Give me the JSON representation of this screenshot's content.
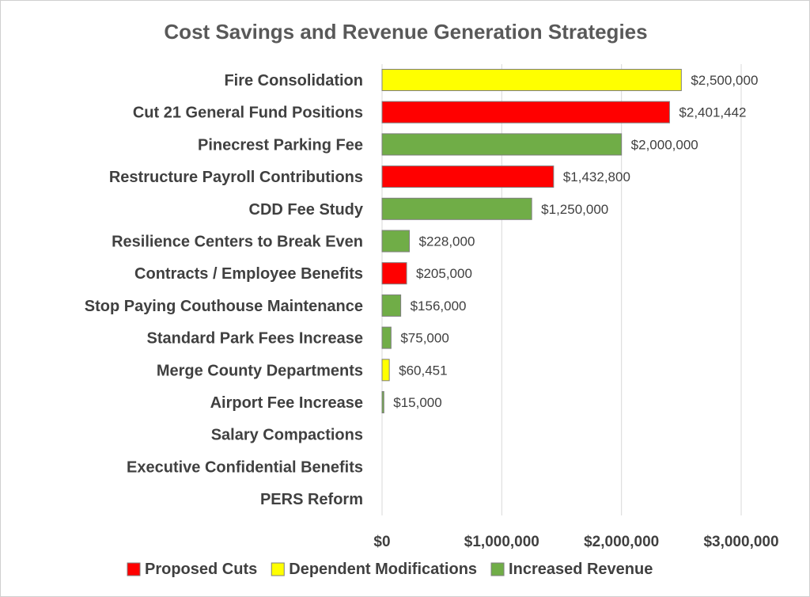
{
  "chart_data": {
    "type": "bar",
    "orientation": "horizontal",
    "title": "Cost Savings and Revenue Generation Strategies",
    "xlim": [
      0,
      3000000
    ],
    "x_ticks": [
      0,
      1000000,
      2000000,
      3000000
    ],
    "x_tick_labels": [
      "$0",
      "$1,000,000",
      "$2,000,000",
      "$3,000,000"
    ],
    "grid": true,
    "legend_position": "bottom",
    "legend": [
      {
        "name": "Proposed Cuts",
        "color": "#ff0000"
      },
      {
        "name": "Dependent Modifications",
        "color": "#ffff00"
      },
      {
        "name": "Increased Revenue",
        "color": "#70ad47"
      }
    ],
    "bars": [
      {
        "category": "Fire Consolidation",
        "value": 2500000,
        "label": "$2,500,000",
        "group": "Dependent Modifications",
        "color": "#ffff00"
      },
      {
        "category": "Cut 21 General Fund Positions",
        "value": 2401442,
        "label": "$2,401,442",
        "group": "Proposed Cuts",
        "color": "#ff0000"
      },
      {
        "category": "Pinecrest Parking Fee",
        "value": 2000000,
        "label": "$2,000,000",
        "group": "Increased Revenue",
        "color": "#70ad47"
      },
      {
        "category": "Restructure Payroll Contributions",
        "value": 1432800,
        "label": "$1,432,800",
        "group": "Proposed Cuts",
        "color": "#ff0000"
      },
      {
        "category": "CDD Fee Study",
        "value": 1250000,
        "label": "$1,250,000",
        "group": "Increased Revenue",
        "color": "#70ad47"
      },
      {
        "category": "Resilience Centers to Break Even",
        "value": 228000,
        "label": "$228,000",
        "group": "Increased Revenue",
        "color": "#70ad47"
      },
      {
        "category": "Contracts / Employee Benefits",
        "value": 205000,
        "label": "$205,000",
        "group": "Proposed Cuts",
        "color": "#ff0000"
      },
      {
        "category": "Stop Paying Couthouse Maintenance",
        "value": 156000,
        "label": "$156,000",
        "group": "Increased Revenue",
        "color": "#70ad47"
      },
      {
        "category": "Standard Park Fees Increase",
        "value": 75000,
        "label": "$75,000",
        "group": "Increased Revenue",
        "color": "#70ad47"
      },
      {
        "category": "Merge County Departments",
        "value": 60451,
        "label": "$60,451",
        "group": "Dependent Modifications",
        "color": "#ffff00"
      },
      {
        "category": "Airport Fee Increase",
        "value": 15000,
        "label": "$15,000",
        "group": "Increased Revenue",
        "color": "#70ad47"
      },
      {
        "category": "Salary Compactions",
        "value": 0,
        "label": "",
        "group": "",
        "color": "#70ad47"
      },
      {
        "category": "Executive Confidential Benefits",
        "value": 0,
        "label": "",
        "group": "",
        "color": "#70ad47"
      },
      {
        "category": "PERS Reform",
        "value": 0,
        "label": "",
        "group": "",
        "color": "#70ad47"
      }
    ]
  }
}
